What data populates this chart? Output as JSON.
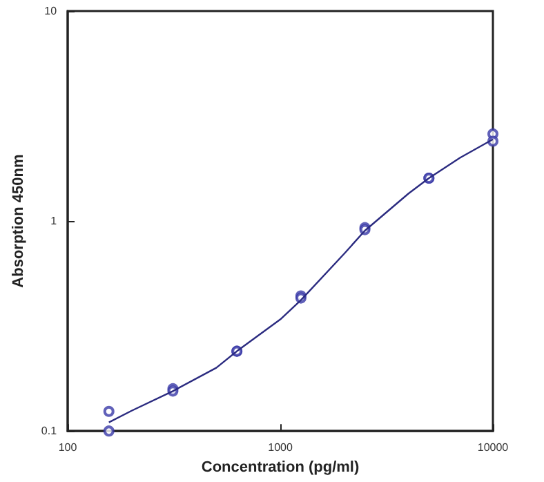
{
  "chart_data": {
    "type": "scatter",
    "xlabel": "Concentration (pg/ml)",
    "ylabel": "Absorption 450nm",
    "log": "xy",
    "grid": false,
    "marker": "circle",
    "xlim": [
      100,
      10000
    ],
    "xticks": [
      100,
      1000,
      10000
    ],
    "ylim": [
      0.1,
      10
    ],
    "yticks": [
      0.1,
      1,
      10
    ],
    "series": [
      {
        "color": "#3a3aa8",
        "x": [
          156.25,
          156.25,
          312.5,
          312.5,
          625,
          625,
          1250,
          1250,
          2500,
          2500,
          5000,
          5000,
          10000,
          10000
        ],
        "values": [
          0.124,
          0.1,
          0.159,
          0.155,
          0.24,
          0.24,
          0.44,
          0.43,
          0.93,
          0.91,
          1.6,
          1.6,
          2.6,
          2.4
        ]
      },
      {
        "type": "line",
        "marker": "none",
        "color": "#2b2b80",
        "x": [
          156.25,
          200,
          312.5,
          500,
          625,
          1000,
          1250,
          2000,
          2500,
          4000,
          5000,
          7000,
          10000
        ],
        "values": [
          0.11,
          0.125,
          0.155,
          0.2,
          0.24,
          0.34,
          0.42,
          0.7,
          0.9,
          1.35,
          1.6,
          2.0,
          2.45
        ]
      }
    ]
  }
}
